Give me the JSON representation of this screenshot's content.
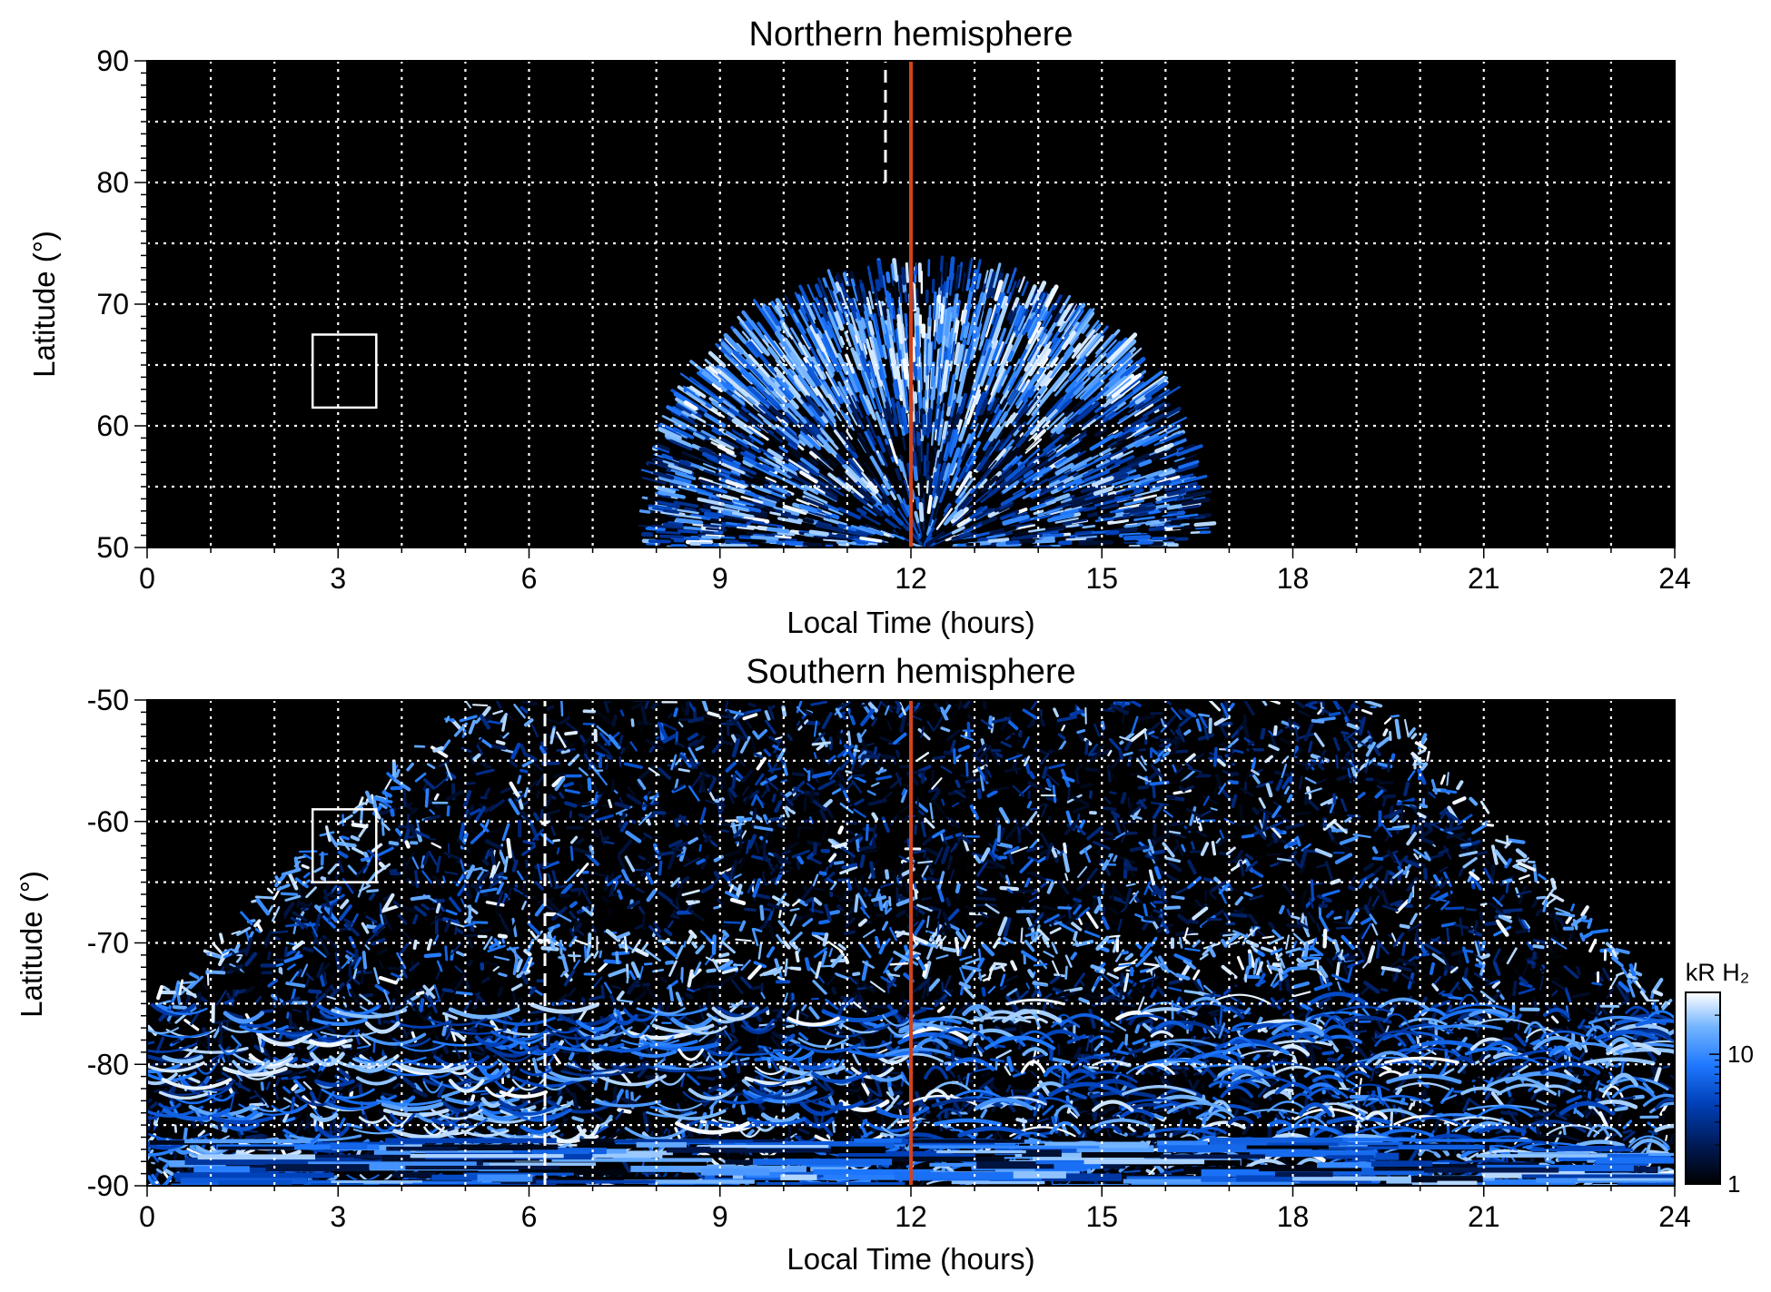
{
  "chart_data": [
    {
      "type": "heatmap",
      "title": "Northern hemisphere",
      "xlabel": "Local Time (hours)",
      "ylabel": "Latitude (°)",
      "xlim": [
        0,
        24
      ],
      "ylim": [
        50,
        90
      ],
      "xticks": [
        0,
        3,
        6,
        9,
        12,
        15,
        18,
        21,
        24
      ],
      "yticks": [
        50,
        60,
        70,
        80,
        90
      ],
      "grid": true,
      "background": "#000000",
      "reference_lines": [
        {
          "style": "solid",
          "color": "#d2421b",
          "x": 12,
          "y_range": [
            50,
            90
          ]
        },
        {
          "style": "dashed",
          "color": "#ffffff",
          "x": 11.6,
          "y_range": [
            80,
            90
          ]
        }
      ],
      "box": {
        "x_range": [
          2.6,
          3.6
        ],
        "y_range": [
          61.5,
          67.5
        ],
        "color": "#ffffff"
      },
      "emission_region": {
        "x_range": [
          7.7,
          16.7
        ],
        "y_peak": 73.5,
        "y_peak_at_x": 12.2,
        "y_edge": 50,
        "bright_band_y": [
          62,
          69
        ]
      }
    },
    {
      "type": "heatmap",
      "title": "Southern hemisphere",
      "xlabel": "Local Time (hours)",
      "ylabel": "Latitude (°)",
      "xlim": [
        0,
        24
      ],
      "ylim": [
        -90,
        -50
      ],
      "xticks": [
        0,
        3,
        6,
        9,
        12,
        15,
        18,
        21,
        24
      ],
      "yticks": [
        -90,
        -80,
        -70,
        -60,
        -50
      ],
      "grid": true,
      "background": "#000000",
      "reference_lines": [
        {
          "style": "solid",
          "color": "#d2421b",
          "x": 12,
          "y_range": [
            -90,
            -50
          ]
        },
        {
          "style": "dashed",
          "color": "#ffffff",
          "x": 6.25,
          "y_range": [
            -90,
            -50
          ]
        }
      ],
      "box": {
        "x_range": [
          2.6,
          3.6
        ],
        "y_range": [
          -65,
          -59
        ],
        "color": "#ffffff"
      },
      "emission_region": {
        "x_range": [
          0,
          24
        ],
        "top_x_range": [
          5.0,
          19.5
        ],
        "dark_corner_boundary_y": -75,
        "oval_x": [
          6,
          18
        ],
        "oval_y": -71,
        "bottom_bands_y": [
          -90,
          -86
        ]
      }
    }
  ],
  "colorbar": {
    "label": "kR H₂",
    "ticks": [
      1,
      10
    ],
    "range": [
      1,
      30
    ],
    "scale": "log",
    "colors": [
      "#000000",
      "#001a55",
      "#0040b8",
      "#1e78ff",
      "#73b4ff",
      "#ffffff"
    ]
  }
}
